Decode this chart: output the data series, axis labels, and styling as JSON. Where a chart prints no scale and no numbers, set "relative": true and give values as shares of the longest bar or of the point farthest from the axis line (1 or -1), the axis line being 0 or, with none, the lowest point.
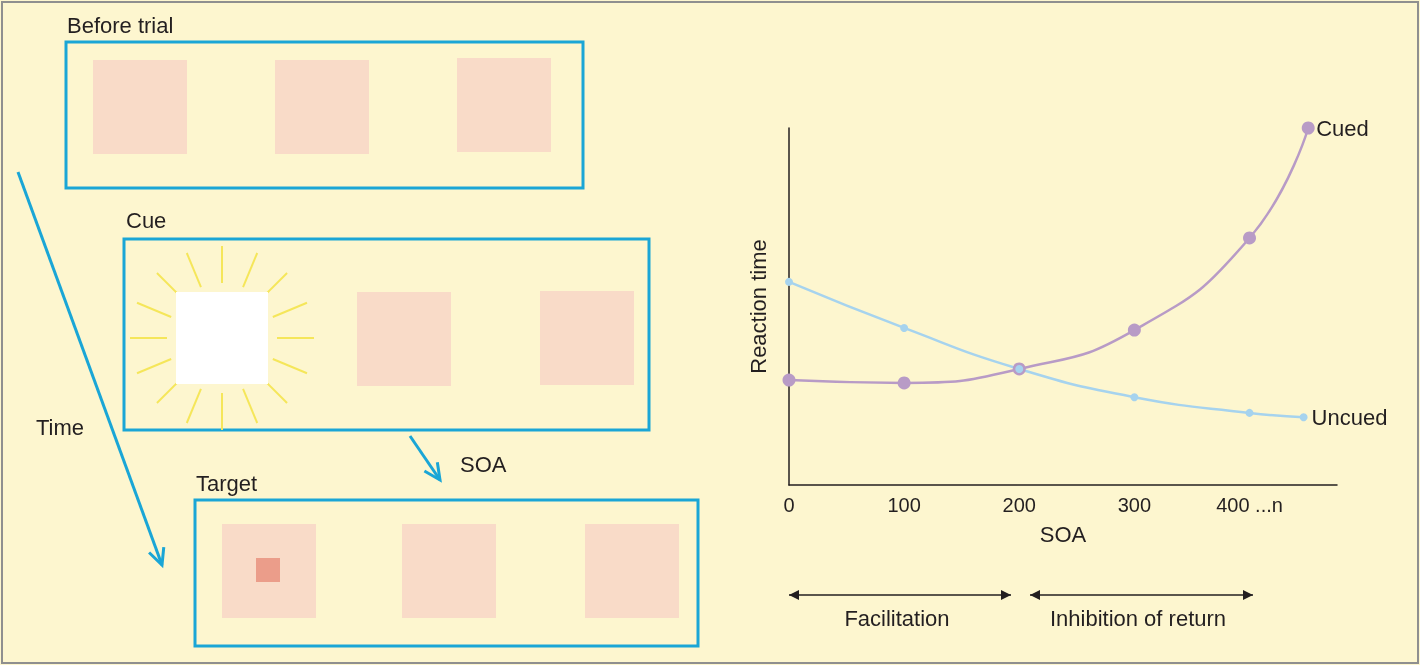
{
  "chart_data": [
    {
      "type": "other",
      "annotations": [
        "Before trial",
        "Cue",
        "Time",
        "SOA",
        "Target"
      ]
    },
    {
      "type": "line",
      "xlabel": "SOA",
      "ylabel": "Reaction time",
      "relative": true,
      "marker": "circle",
      "xlim": [
        0,
        476
      ],
      "xticks": [
        0,
        100,
        200,
        300,
        {
          "value": 400,
          "label": "400 ...n"
        }
      ],
      "series": [
        {
          "name": "Cued",
          "color": "#b89bc6",
          "x": [
            0,
            100,
            200,
            300,
            400,
            451
          ],
          "values": [
            0.294,
            0.286,
            0.325,
            0.434,
            0.692,
            1
          ]
        },
        {
          "name": "Uncued",
          "color": "#a6d3ee",
          "x": [
            0,
            100,
            200,
            300,
            400,
            447
          ],
          "values": [
            0.569,
            0.44,
            0.325,
            0.246,
            0.202,
            0.19
          ]
        }
      ],
      "annotations": [
        "Facilitation",
        "Inhibition of return"
      ]
    }
  ]
}
